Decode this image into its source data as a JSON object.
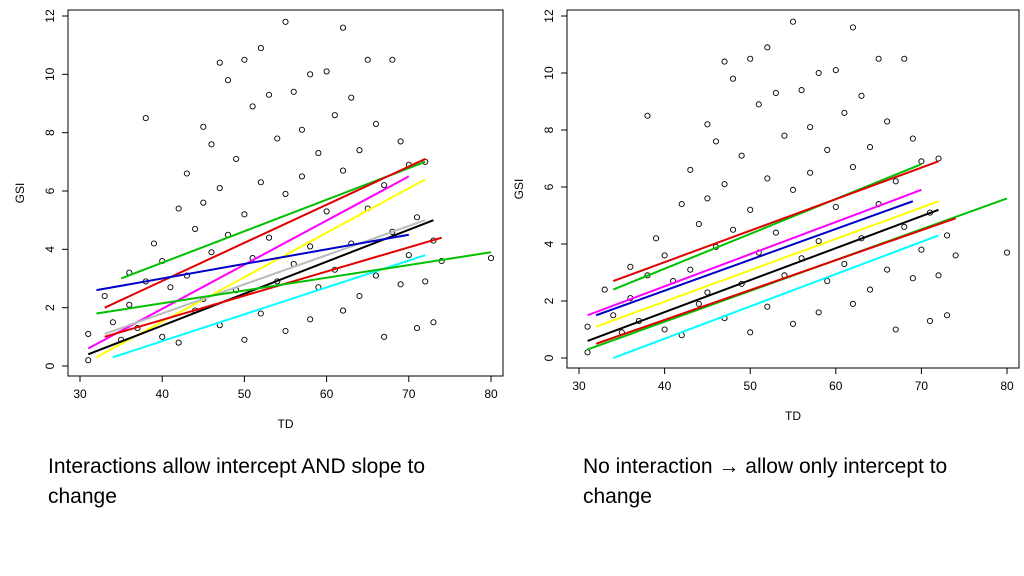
{
  "captions": {
    "left": "Interactions allow intercept AND slope to change",
    "right_before": "No interaction",
    "right_arrow": "→",
    "right_after": "allow only intercept to change"
  },
  "chart_data": [
    {
      "type": "scatter",
      "title": "",
      "xlabel": "TD",
      "ylabel": "GSI",
      "xlim": [
        30,
        80
      ],
      "ylim": [
        0,
        12
      ],
      "xticks": [
        30,
        40,
        50,
        60,
        70,
        80
      ],
      "yticks": [
        0,
        2,
        4,
        6,
        8,
        10,
        12
      ],
      "grid": false,
      "marker": "open-circle",
      "points": [
        [
          31,
          1.1
        ],
        [
          31,
          0.2
        ],
        [
          33,
          2.4
        ],
        [
          34,
          1.5
        ],
        [
          35,
          0.9
        ],
        [
          36,
          3.2
        ],
        [
          36,
          2.1
        ],
        [
          37,
          1.3
        ],
        [
          38,
          8.5
        ],
        [
          38,
          2.9
        ],
        [
          39,
          4.2
        ],
        [
          40,
          3.6
        ],
        [
          40,
          1.0
        ],
        [
          41,
          2.7
        ],
        [
          42,
          5.4
        ],
        [
          42,
          0.8
        ],
        [
          43,
          6.6
        ],
        [
          43,
          3.1
        ],
        [
          44,
          4.7
        ],
        [
          44,
          1.9
        ],
        [
          45,
          8.2
        ],
        [
          45,
          5.6
        ],
        [
          45,
          2.3
        ],
        [
          46,
          7.6
        ],
        [
          46,
          3.9
        ],
        [
          47,
          10.4
        ],
        [
          47,
          6.1
        ],
        [
          47,
          1.4
        ],
        [
          48,
          9.8
        ],
        [
          48,
          4.5
        ],
        [
          49,
          7.1
        ],
        [
          49,
          2.6
        ],
        [
          50,
          10.5
        ],
        [
          50,
          5.2
        ],
        [
          50,
          0.9
        ],
        [
          51,
          8.9
        ],
        [
          51,
          3.7
        ],
        [
          52,
          10.9
        ],
        [
          52,
          6.3
        ],
        [
          52,
          1.8
        ],
        [
          53,
          9.3
        ],
        [
          53,
          4.4
        ],
        [
          54,
          7.8
        ],
        [
          54,
          2.9
        ],
        [
          55,
          11.8
        ],
        [
          55,
          5.9
        ],
        [
          55,
          1.2
        ],
        [
          56,
          9.4
        ],
        [
          56,
          3.5
        ],
        [
          57,
          8.1
        ],
        [
          57,
          6.5
        ],
        [
          58,
          10.0
        ],
        [
          58,
          4.1
        ],
        [
          58,
          1.6
        ],
        [
          59,
          7.3
        ],
        [
          59,
          2.7
        ],
        [
          60,
          10.1
        ],
        [
          60,
          5.3
        ],
        [
          61,
          8.6
        ],
        [
          61,
          3.3
        ],
        [
          62,
          11.6
        ],
        [
          62,
          6.7
        ],
        [
          62,
          1.9
        ],
        [
          63,
          9.2
        ],
        [
          63,
          4.2
        ],
        [
          64,
          7.4
        ],
        [
          64,
          2.4
        ],
        [
          65,
          10.5
        ],
        [
          65,
          5.4
        ],
        [
          66,
          8.3
        ],
        [
          66,
          3.1
        ],
        [
          67,
          6.2
        ],
        [
          67,
          1.0
        ],
        [
          68,
          10.5
        ],
        [
          68,
          4.6
        ],
        [
          69,
          7.7
        ],
        [
          69,
          2.8
        ],
        [
          70,
          6.9
        ],
        [
          70,
          3.8
        ],
        [
          71,
          5.1
        ],
        [
          71,
          1.3
        ],
        [
          72,
          7.0
        ],
        [
          72,
          2.9
        ],
        [
          73,
          4.3
        ],
        [
          73,
          1.5
        ],
        [
          74,
          3.6
        ],
        [
          80,
          3.7
        ]
      ],
      "series": [
        {
          "color": "#00c000",
          "x": [
            35,
            72
          ],
          "y": [
            3.0,
            7.0
          ]
        },
        {
          "color": "#e00000",
          "x": [
            33,
            72
          ],
          "y": [
            2.0,
            7.1
          ]
        },
        {
          "color": "#ff00ff",
          "x": [
            31,
            70
          ],
          "y": [
            0.6,
            6.5
          ]
        },
        {
          "color": "#ffff00",
          "x": [
            32,
            72
          ],
          "y": [
            0.3,
            6.4
          ]
        },
        {
          "color": "#000000",
          "x": [
            31,
            73
          ],
          "y": [
            0.4,
            5.0
          ]
        },
        {
          "color": "#bbbbbb",
          "x": [
            33,
            72
          ],
          "y": [
            1.1,
            5.0
          ]
        },
        {
          "color": "#0000c8",
          "x": [
            32,
            70
          ],
          "y": [
            2.6,
            4.5
          ]
        },
        {
          "color": "#e00000",
          "x": [
            33,
            74
          ],
          "y": [
            1.0,
            4.4
          ]
        },
        {
          "color": "#00ffff",
          "x": [
            34,
            72
          ],
          "y": [
            0.3,
            3.8
          ]
        },
        {
          "color": "#00c000",
          "x": [
            32,
            80
          ],
          "y": [
            1.8,
            3.9
          ]
        }
      ]
    },
    {
      "type": "scatter",
      "title": "",
      "xlabel": "TD",
      "ylabel": "GSI",
      "xlim": [
        30,
        80
      ],
      "ylim": [
        0,
        12
      ],
      "xticks": [
        30,
        40,
        50,
        60,
        70,
        80
      ],
      "yticks": [
        0,
        2,
        4,
        6,
        8,
        10,
        12
      ],
      "grid": false,
      "marker": "open-circle",
      "points": [
        [
          31,
          1.1
        ],
        [
          31,
          0.2
        ],
        [
          33,
          2.4
        ],
        [
          34,
          1.5
        ],
        [
          35,
          0.9
        ],
        [
          36,
          3.2
        ],
        [
          36,
          2.1
        ],
        [
          37,
          1.3
        ],
        [
          38,
          8.5
        ],
        [
          38,
          2.9
        ],
        [
          39,
          4.2
        ],
        [
          40,
          3.6
        ],
        [
          40,
          1.0
        ],
        [
          41,
          2.7
        ],
        [
          42,
          5.4
        ],
        [
          42,
          0.8
        ],
        [
          43,
          6.6
        ],
        [
          43,
          3.1
        ],
        [
          44,
          4.7
        ],
        [
          44,
          1.9
        ],
        [
          45,
          8.2
        ],
        [
          45,
          5.6
        ],
        [
          45,
          2.3
        ],
        [
          46,
          7.6
        ],
        [
          46,
          3.9
        ],
        [
          47,
          10.4
        ],
        [
          47,
          6.1
        ],
        [
          47,
          1.4
        ],
        [
          48,
          9.8
        ],
        [
          48,
          4.5
        ],
        [
          49,
          7.1
        ],
        [
          49,
          2.6
        ],
        [
          50,
          10.5
        ],
        [
          50,
          5.2
        ],
        [
          50,
          0.9
        ],
        [
          51,
          8.9
        ],
        [
          51,
          3.7
        ],
        [
          52,
          10.9
        ],
        [
          52,
          6.3
        ],
        [
          52,
          1.8
        ],
        [
          53,
          9.3
        ],
        [
          53,
          4.4
        ],
        [
          54,
          7.8
        ],
        [
          54,
          2.9
        ],
        [
          55,
          11.8
        ],
        [
          55,
          5.9
        ],
        [
          55,
          1.2
        ],
        [
          56,
          9.4
        ],
        [
          56,
          3.5
        ],
        [
          57,
          8.1
        ],
        [
          57,
          6.5
        ],
        [
          58,
          10.0
        ],
        [
          58,
          4.1
        ],
        [
          58,
          1.6
        ],
        [
          59,
          7.3
        ],
        [
          59,
          2.7
        ],
        [
          60,
          10.1
        ],
        [
          60,
          5.3
        ],
        [
          61,
          8.6
        ],
        [
          61,
          3.3
        ],
        [
          62,
          11.6
        ],
        [
          62,
          6.7
        ],
        [
          62,
          1.9
        ],
        [
          63,
          9.2
        ],
        [
          63,
          4.2
        ],
        [
          64,
          7.4
        ],
        [
          64,
          2.4
        ],
        [
          65,
          10.5
        ],
        [
          65,
          5.4
        ],
        [
          66,
          8.3
        ],
        [
          66,
          3.1
        ],
        [
          67,
          6.2
        ],
        [
          67,
          1.0
        ],
        [
          68,
          10.5
        ],
        [
          68,
          4.6
        ],
        [
          69,
          7.7
        ],
        [
          69,
          2.8
        ],
        [
          70,
          6.9
        ],
        [
          70,
          3.8
        ],
        [
          71,
          5.1
        ],
        [
          71,
          1.3
        ],
        [
          72,
          7.0
        ],
        [
          72,
          2.9
        ],
        [
          73,
          4.3
        ],
        [
          73,
          1.5
        ],
        [
          74,
          3.6
        ],
        [
          80,
          3.7
        ]
      ],
      "series": [
        {
          "color": "#00c000",
          "x": [
            34,
            70
          ],
          "y": [
            2.4,
            6.8
          ]
        },
        {
          "color": "#e00000",
          "x": [
            34,
            72
          ],
          "y": [
            2.7,
            6.9
          ]
        },
        {
          "color": "#ff00ff",
          "x": [
            31,
            70
          ],
          "y": [
            1.5,
            5.9
          ]
        },
        {
          "color": "#ffff00",
          "x": [
            32,
            72
          ],
          "y": [
            1.1,
            5.5
          ]
        },
        {
          "color": "#0000c8",
          "x": [
            32,
            69
          ],
          "y": [
            1.5,
            5.5
          ]
        },
        {
          "color": "#000000",
          "x": [
            31,
            72
          ],
          "y": [
            0.6,
            5.2
          ]
        },
        {
          "color": "#00c000",
          "x": [
            31,
            80
          ],
          "y": [
            0.3,
            5.6
          ]
        },
        {
          "color": "#e00000",
          "x": [
            32,
            74
          ],
          "y": [
            0.5,
            4.9
          ]
        },
        {
          "color": "#00ffff",
          "x": [
            34,
            72
          ],
          "y": [
            0.0,
            4.3
          ]
        }
      ]
    }
  ]
}
